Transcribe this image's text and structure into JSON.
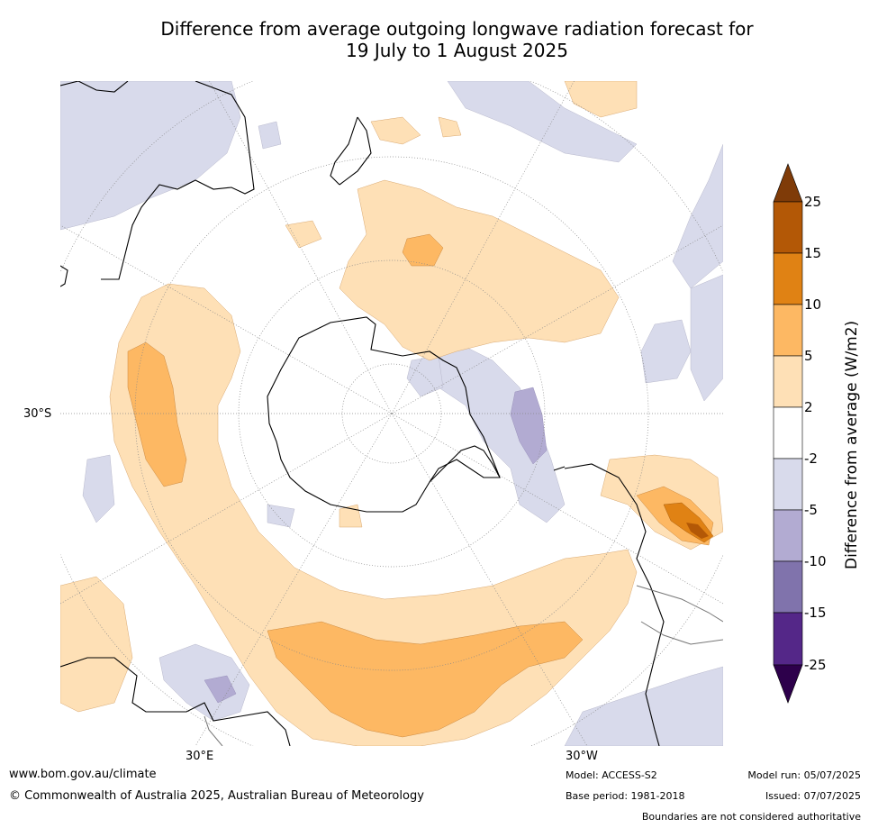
{
  "title": {
    "line1": "Difference from average outgoing longwave radiation forecast for",
    "line2": "19 July to 1 August 2025"
  },
  "map": {
    "projection": "south polar stereographic",
    "labels": {
      "lat_30s": "30°S",
      "lon_30e": "30°E",
      "lon_30w": "30°W"
    }
  },
  "colorbar": {
    "unit_label": "Difference from average (W/m2)",
    "ticks": [
      "25",
      "15",
      "10",
      "5",
      "2",
      "-2",
      "-5",
      "-10",
      "-15",
      "-25"
    ],
    "colors": {
      "gt25": "#7f3b08",
      "15_25": "#b35806",
      "10_15": "#e08214",
      "5_10": "#fdb863",
      "2_5": "#fee0b6",
      "m2_2": "#ffffff",
      "m5_m2": "#d8daeb",
      "m10_m5": "#b2abd2",
      "m15_m10": "#8073ac",
      "m25_m15": "#542788",
      "lt_m25": "#2d004b"
    }
  },
  "footer": {
    "url": "www.bom.gov.au/climate",
    "copyright": "© Commonwealth of Australia 2025, Australian Bureau of Meteorology",
    "model": "Model: ACCESS-S2",
    "base_period": "Base period: 1981-2018",
    "model_run": "Model run: 05/07/2025",
    "issued": "Issued: 07/07/2025",
    "disclaimer": "Boundaries are not considered authoritative"
  }
}
